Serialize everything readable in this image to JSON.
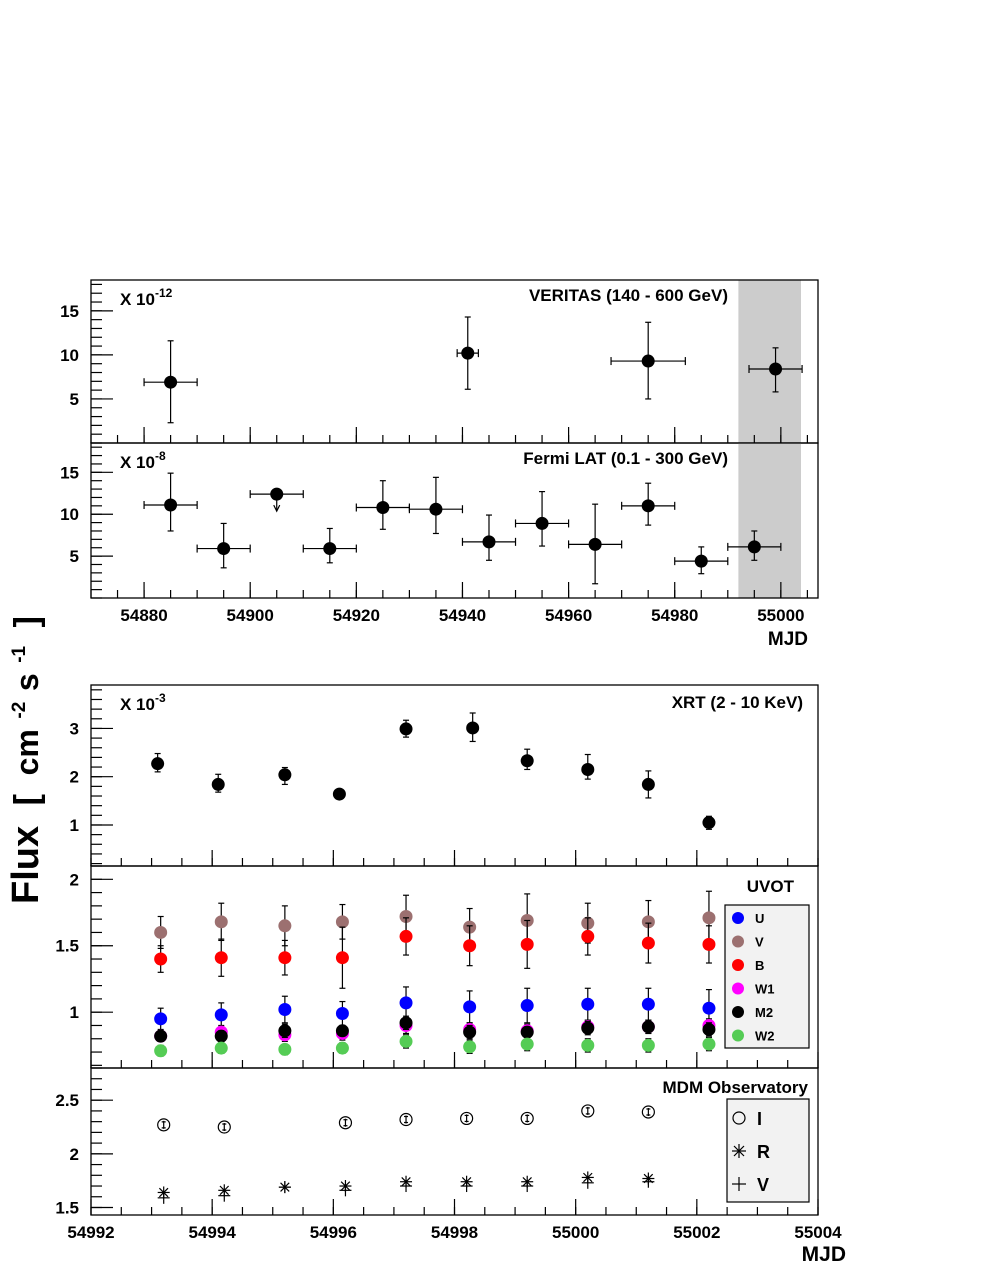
{
  "figure": {
    "ylabel_main": "Flux",
    "ylabel_unit_open": "[",
    "ylabel_unit_cm": "cm",
    "ylabel_unit_exp1": "-2",
    "ylabel_unit_s": "s",
    "ylabel_unit_exp2": "-1",
    "ylabel_unit_close": "]"
  },
  "chart_data": [
    {
      "id": "veritas",
      "type": "scatter",
      "title": "VERITAS (140 - 600 GeV)",
      "multiplier_prefix": "X 10",
      "multiplier_exp": "-12",
      "xlim": [
        54870,
        55007
      ],
      "ylim": [
        0,
        18.5
      ],
      "yticks": [
        5,
        10,
        15
      ],
      "shaded_x": [
        54992,
        55004
      ],
      "points": [
        {
          "x": 54885,
          "xerr": 5,
          "y": 6.9,
          "ylo": 2.3,
          "yhi": 11.6
        },
        {
          "x": 54941,
          "xerr": 2,
          "y": 10.2,
          "ylo": 6.1,
          "yhi": 14.3
        },
        {
          "x": 54975,
          "xerr": 7,
          "y": 9.3,
          "ylo": 5.0,
          "yhi": 13.7
        },
        {
          "x": 54999,
          "xerr": 5,
          "y": 8.4,
          "ylo": 5.8,
          "yhi": 10.8
        }
      ]
    },
    {
      "id": "fermi",
      "type": "scatter",
      "title": "Fermi LAT (0.1 - 300 GeV)",
      "multiplier_prefix": "X 10",
      "multiplier_exp": "-8",
      "xlim": [
        54870,
        55007
      ],
      "ylim": [
        0,
        18.5
      ],
      "yticks": [
        5,
        10,
        15
      ],
      "xticks": [
        54880,
        54900,
        54920,
        54940,
        54960,
        54980,
        55000
      ],
      "xlabel": "MJD",
      "shaded_x": [
        54992,
        55004
      ],
      "points": [
        {
          "x": 54885,
          "xerr": 5,
          "y": 11.1,
          "ylo": 8.0,
          "yhi": 14.9
        },
        {
          "x": 54895,
          "xerr": 5,
          "y": 5.9,
          "ylo": 3.6,
          "yhi": 8.9
        },
        {
          "x": 54905,
          "xerr": 5,
          "y": 12.4,
          "upper_limit": true
        },
        {
          "x": 54915,
          "xerr": 5,
          "y": 5.9,
          "ylo": 4.2,
          "yhi": 8.3
        },
        {
          "x": 54925,
          "xerr": 5,
          "y": 10.8,
          "ylo": 8.2,
          "yhi": 14.0
        },
        {
          "x": 54935,
          "xerr": 5,
          "y": 10.6,
          "ylo": 7.7,
          "yhi": 14.4
        },
        {
          "x": 54945,
          "xerr": 5,
          "y": 6.7,
          "ylo": 4.5,
          "yhi": 9.9
        },
        {
          "x": 54955,
          "xerr": 5,
          "y": 8.9,
          "ylo": 6.2,
          "yhi": 12.7
        },
        {
          "x": 54965,
          "xerr": 5,
          "y": 6.4,
          "ylo": 1.7,
          "yhi": 11.2
        },
        {
          "x": 54975,
          "xerr": 5,
          "y": 11.0,
          "ylo": 8.7,
          "yhi": 13.7
        },
        {
          "x": 54985,
          "xerr": 5,
          "y": 4.4,
          "ylo": 2.9,
          "yhi": 6.1
        },
        {
          "x": 54995,
          "xerr": 5,
          "y": 6.1,
          "ylo": 4.5,
          "yhi": 8.0
        }
      ]
    },
    {
      "id": "xrt",
      "type": "scatter",
      "title": "XRT (2 - 10 KeV)",
      "multiplier_prefix": "X 10",
      "multiplier_exp": "-3",
      "xlim": [
        54992,
        55004
      ],
      "ylim": [
        0.15,
        3.9
      ],
      "yticks": [
        1,
        2,
        3
      ],
      "points": [
        {
          "x": 54993.1,
          "y": 2.27,
          "ylo": 2.1,
          "yhi": 2.48
        },
        {
          "x": 54994.1,
          "y": 1.84,
          "ylo": 1.68,
          "yhi": 2.05
        },
        {
          "x": 54995.2,
          "y": 2.04,
          "ylo": 1.84,
          "yhi": 2.19
        },
        {
          "x": 54996.1,
          "y": 1.64,
          "ylo": 1.58,
          "yhi": 1.72
        },
        {
          "x": 54997.2,
          "y": 2.99,
          "ylo": 2.82,
          "yhi": 3.17
        },
        {
          "x": 54998.3,
          "y": 3.01,
          "ylo": 2.73,
          "yhi": 3.32
        },
        {
          "x": 54999.2,
          "y": 2.33,
          "ylo": 2.15,
          "yhi": 2.57
        },
        {
          "x": 55000.2,
          "y": 2.15,
          "ylo": 1.95,
          "yhi": 2.46
        },
        {
          "x": 55001.2,
          "y": 1.84,
          "ylo": 1.56,
          "yhi": 2.12
        },
        {
          "x": 55002.2,
          "y": 1.05,
          "ylo": 0.91,
          "yhi": 1.18
        }
      ]
    },
    {
      "id": "uvot",
      "type": "scatter",
      "title": "UVOT",
      "xlim": [
        54992,
        55004
      ],
      "ylim": [
        0.58,
        2.1
      ],
      "yticks": [
        1,
        1.5,
        2
      ],
      "ytick_labels": [
        "1",
        "1.5",
        "2"
      ],
      "legend_position": "right",
      "x": [
        54993.15,
        54994.15,
        54995.2,
        54996.15,
        54997.2,
        54998.25,
        54999.2,
        55000.2,
        55001.2,
        55002.2
      ],
      "series": [
        {
          "name": "U",
          "color": "#0000ff",
          "values": [
            0.95,
            0.98,
            1.02,
            0.99,
            1.07,
            1.04,
            1.05,
            1.06,
            1.06,
            1.03
          ],
          "err": [
            0.08,
            0.09,
            0.1,
            0.09,
            0.12,
            0.12,
            0.13,
            0.12,
            0.12,
            0.14
          ]
        },
        {
          "name": "V",
          "color": "#9c7070",
          "values": [
            1.6,
            1.68,
            1.65,
            1.68,
            1.72,
            1.64,
            1.69,
            1.67,
            1.68,
            1.71
          ],
          "err": [
            0.12,
            0.14,
            0.15,
            0.13,
            0.16,
            0.14,
            0.2,
            0.15,
            0.16,
            0.2
          ]
        },
        {
          "name": "B",
          "color": "#ff0000",
          "values": [
            1.4,
            1.41,
            1.41,
            1.41,
            1.57,
            1.5,
            1.51,
            1.57,
            1.52,
            1.51
          ],
          "err": [
            0.1,
            0.14,
            0.13,
            0.23,
            0.14,
            0.15,
            0.18,
            0.14,
            0.15,
            0.14
          ]
        },
        {
          "name": "W1",
          "color": "#ff00ff",
          "values": [
            0.82,
            0.85,
            0.83,
            0.84,
            0.9,
            0.87,
            0.86,
            0.89,
            0.89,
            0.9
          ],
          "err": [
            0.04,
            0.05,
            0.05,
            0.05,
            0.06,
            0.05,
            0.05,
            0.05,
            0.05,
            0.05
          ]
        },
        {
          "name": "M2",
          "color": "#000000",
          "values": [
            0.82,
            0.82,
            0.86,
            0.86,
            0.92,
            0.85,
            0.85,
            0.88,
            0.89,
            0.87
          ],
          "err": [
            0.04,
            0.04,
            0.05,
            0.04,
            0.05,
            0.05,
            0.04,
            0.05,
            0.05,
            0.05
          ]
        },
        {
          "name": "W2",
          "color": "#55cc55",
          "values": [
            0.71,
            0.73,
            0.72,
            0.73,
            0.78,
            0.74,
            0.76,
            0.75,
            0.75,
            0.76
          ],
          "err": [
            0.04,
            0.04,
            0.04,
            0.04,
            0.05,
            0.05,
            0.05,
            0.05,
            0.05,
            0.05
          ]
        }
      ]
    },
    {
      "id": "mdm",
      "type": "scatter",
      "title": "MDM Observatory",
      "xlim": [
        54992,
        55004
      ],
      "ylim": [
        1.43,
        2.8
      ],
      "yticks": [
        1.5,
        2,
        2.5
      ],
      "ytick_labels": [
        "1.5",
        "2",
        "2.5"
      ],
      "xticks": [
        54992,
        54994,
        54996,
        54998,
        55000,
        55002,
        55004
      ],
      "xlabel": "MJD",
      "legend_position": "right",
      "series": [
        {
          "name": "I",
          "marker": "circle",
          "x": [
            54993.2,
            54994.2,
            54996.2,
            54997.2,
            54998.2,
            54999.2,
            55000.2,
            55001.2
          ],
          "values": [
            2.27,
            2.25,
            2.29,
            2.32,
            2.33,
            2.33,
            2.4,
            2.39
          ]
        },
        {
          "name": "R",
          "marker": "star",
          "x": [
            54993.2,
            54994.2,
            54995.2,
            54996.2,
            54997.2,
            54998.2,
            54999.2,
            55000.2,
            55001.2
          ],
          "values": [
            1.64,
            1.66,
            1.69,
            1.7,
            1.74,
            1.74,
            1.74,
            1.78,
            1.77
          ]
        },
        {
          "name": "V",
          "marker": "plus",
          "x": [
            54993.2,
            54994.2,
            54995.2,
            54996.2,
            54997.2,
            54998.2,
            54999.2,
            55000.2,
            55001.2
          ],
          "values": [
            1.59,
            1.61,
            1.69,
            1.66,
            1.7,
            1.7,
            1.7,
            1.73,
            1.74
          ]
        }
      ]
    }
  ]
}
